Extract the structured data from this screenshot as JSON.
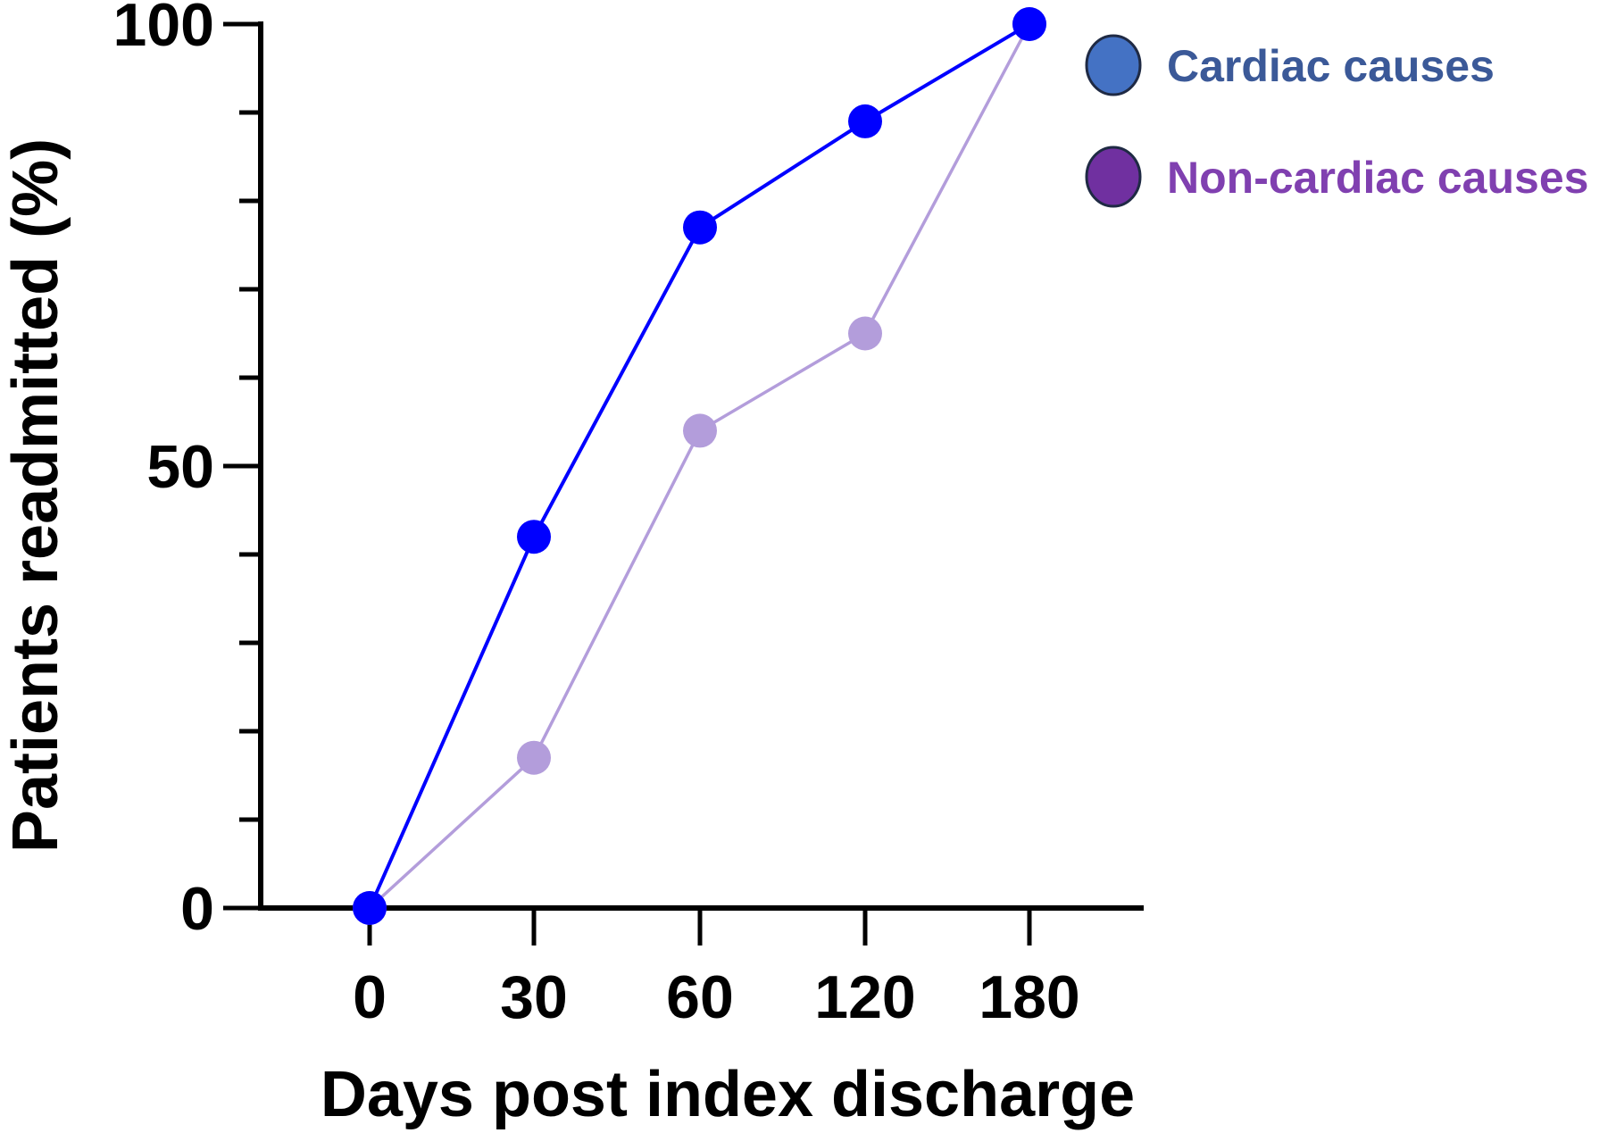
{
  "chart_data": {
    "type": "line",
    "title": "",
    "xlabel": "Days post index discharge",
    "ylabel": "Patients readmitted (%)",
    "categories": [
      "0",
      "30",
      "60",
      "120",
      "180"
    ],
    "ylim": [
      0,
      100
    ],
    "yticks": [
      "0",
      "50",
      "100"
    ],
    "grid": false,
    "legend_position": "top-right",
    "series": [
      {
        "name": "Cardiac causes",
        "values": [
          0,
          42,
          77,
          89,
          100
        ],
        "line_color": "#0000ff",
        "marker_color": "#0000ff",
        "legend_swatch_color": "#4472c4",
        "legend_text_color": "#3b5998"
      },
      {
        "name": "Non-cardiac causes",
        "values": [
          0,
          17,
          54,
          65,
          100
        ],
        "line_color": "#b39ddb",
        "marker_color": "#b39ddb",
        "legend_swatch_color": "#7030a0",
        "legend_text_color": "#8040b0"
      }
    ]
  }
}
